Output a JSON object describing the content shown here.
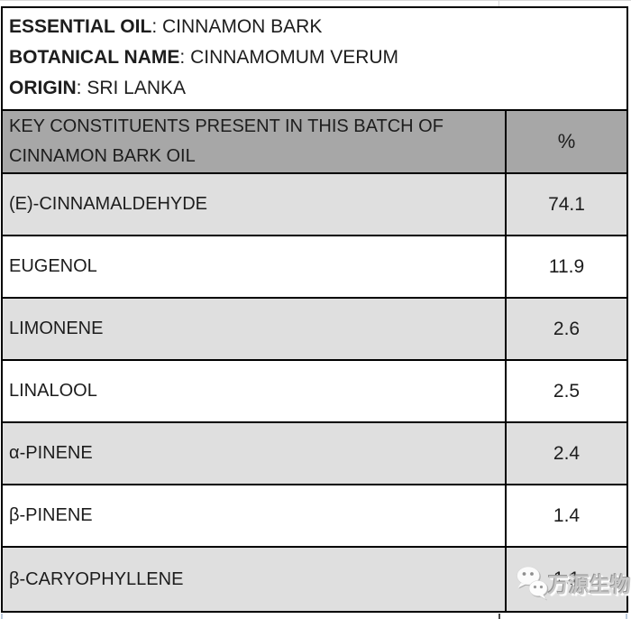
{
  "document": {
    "info": {
      "separator": ": ",
      "lines": [
        {
          "label": "ESSENTIAL OIL",
          "value": "CINNAMON BARK"
        },
        {
          "label": "BOTANICAL NAME",
          "value": "CINNAMOMUM VERUM"
        },
        {
          "label": "ORIGIN",
          "value": "SRI LANKA"
        }
      ]
    },
    "table": {
      "header": {
        "constituents": "KEY CONSTITUENTS PRESENT IN THIS BATCH OF CINNAMON BARK OIL",
        "percent": "%"
      },
      "rows": [
        {
          "name": "(E)-CINNAMALDEHYDE",
          "percent": "74.1"
        },
        {
          "name": "EUGENOL",
          "percent": "11.9"
        },
        {
          "name": "LIMONENE",
          "percent": "2.6"
        },
        {
          "name": "LINALOOL",
          "percent": "2.5"
        },
        {
          "name": "α-PINENE",
          "percent": "2.4"
        },
        {
          "name": "β-PINENE",
          "percent": "1.4"
        },
        {
          "name": "β-CARYOPHYLLENE",
          "percent": "1.1"
        }
      ]
    },
    "watermark": {
      "text": "万源生物",
      "icon": "wechat-logo"
    }
  },
  "colors": {
    "header_bg": "#a7a7a7",
    "row_shaded_bg": "#dfdfdf",
    "row_plain_bg": "#ffffff",
    "table_border": "#000000",
    "gridline": "#d9d9d9",
    "watermark_text": "#c7c7c7",
    "text": "#1d1d1d"
  }
}
